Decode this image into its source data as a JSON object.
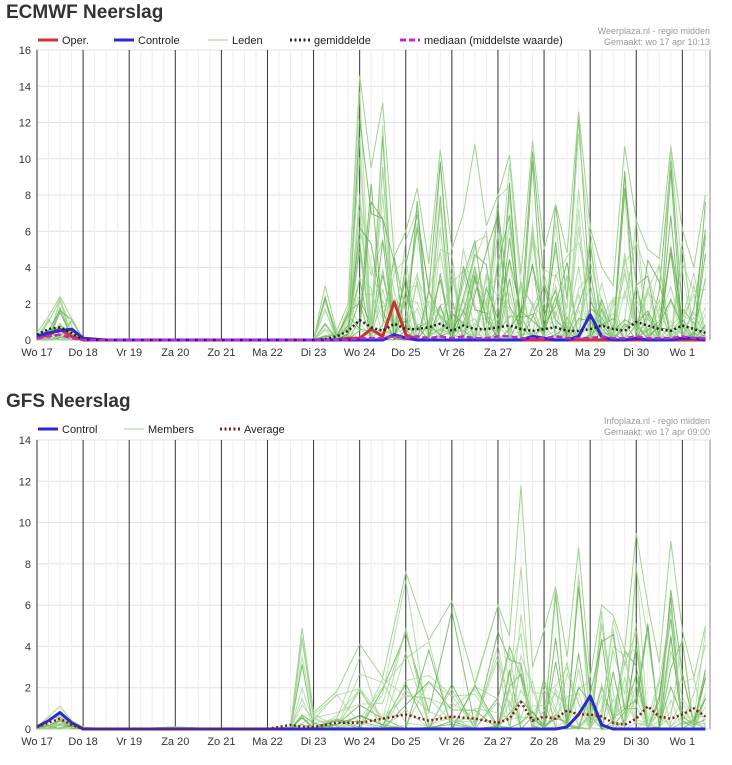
{
  "charts": [
    {
      "title": "ECMWF Neerslag",
      "source_line1": "Weerplaza.nl - regio midden",
      "source_line2": "Gemaakt: wo 17 apr 10:13",
      "legend": [
        {
          "label": "Oper.",
          "color": "#d03030",
          "style": "solid"
        },
        {
          "label": "Controle",
          "color": "#2a2ad0",
          "style": "solid"
        },
        {
          "label": "Leden",
          "color": "#9fd48f",
          "style": "thin"
        },
        {
          "label": "gemiddelde",
          "color": "#222222",
          "style": "dotted"
        },
        {
          "label": "mediaan (middelste waarde)",
          "color": "#d020d0",
          "style": "dashed"
        }
      ]
    },
    {
      "title": "GFS Neerslag",
      "source_line1": "Infoplaza.nl - regio midden",
      "source_line2": "Gemaakt: wo 17 apr 09:00",
      "legend": [
        {
          "label": "Control",
          "color": "#2a2ad0",
          "style": "solid"
        },
        {
          "label": "Members",
          "color": "#9fd48f",
          "style": "thin"
        },
        {
          "label": "Average",
          "color": "#8b1a1a",
          "style": "dotted"
        }
      ]
    }
  ],
  "chart_data": [
    {
      "type": "line",
      "title": "ECMWF Neerslag",
      "xlabel": "",
      "ylabel": "",
      "ylim": [
        0,
        16
      ],
      "yticks": [
        0,
        2,
        4,
        6,
        8,
        10,
        12,
        14,
        16
      ],
      "x_tick_labels": [
        "Wo 17",
        "Do 18",
        "Vr 19",
        "Za 20",
        "Zo 21",
        "Ma 22",
        "Di 23",
        "Wo 24",
        "Do 25",
        "Vr 26",
        "Za 27",
        "Zo 28",
        "Ma 29",
        "Di 30",
        "Wo 1"
      ],
      "grid": true,
      "legend_position": "top",
      "x": [
        0,
        0.25,
        0.5,
        0.75,
        1,
        1.5,
        2,
        3,
        4,
        5,
        6,
        6.25,
        6.5,
        6.75,
        7,
        7.25,
        7.5,
        7.75,
        8,
        8.25,
        8.5,
        8.75,
        9,
        9.25,
        9.5,
        9.75,
        10,
        10.25,
        10.5,
        10.75,
        11,
        11.25,
        11.5,
        11.75,
        12,
        12.25,
        12.5,
        12.75,
        13,
        13.25,
        13.5,
        13.75,
        14,
        14.25,
        14.5
      ],
      "series": [
        {
          "name": "Oper.",
          "values": [
            0.1,
            0.3,
            0.6,
            0.2,
            0,
            0,
            0,
            0,
            0,
            0,
            0,
            0,
            0,
            0.1,
            0.1,
            0.6,
            0.2,
            2.1,
            0.3,
            0,
            0,
            0,
            0,
            0,
            0,
            0,
            0,
            0,
            0,
            0,
            0,
            0,
            0,
            0,
            0,
            0,
            0,
            0,
            0,
            0,
            0,
            0,
            0,
            0,
            0
          ]
        },
        {
          "name": "Controle",
          "values": [
            0.2,
            0.4,
            0.5,
            0.6,
            0.1,
            0,
            0,
            0,
            0,
            0,
            0,
            0,
            0,
            0,
            0,
            0,
            0,
            0.3,
            0.1,
            0,
            0,
            0,
            0,
            0,
            0,
            0,
            0,
            0,
            0,
            0.2,
            0.1,
            0,
            0,
            0.2,
            1.4,
            0.2,
            0,
            0,
            0.1,
            0,
            0,
            0,
            0.1,
            0.1,
            0
          ]
        },
        {
          "name": "gemiddelde",
          "values": [
            0.3,
            0.6,
            0.7,
            0.4,
            0,
            0,
            0,
            0,
            0,
            0,
            0,
            0.05,
            0.2,
            0.5,
            1.1,
            0.7,
            0.5,
            0.9,
            0.6,
            0.6,
            0.7,
            0.9,
            0.5,
            0.8,
            0.6,
            0.6,
            0.7,
            0.8,
            0.6,
            0.5,
            0.6,
            0.7,
            0.5,
            0.5,
            0.6,
            0.8,
            0.6,
            0.5,
            1.0,
            0.8,
            0.6,
            0.5,
            0.8,
            0.6,
            0.4
          ]
        },
        {
          "name": "mediaan (middelste waarde)",
          "values": [
            0.1,
            0.2,
            0.3,
            0.1,
            0,
            0,
            0,
            0,
            0,
            0,
            0,
            0,
            0,
            0,
            0.1,
            0.1,
            0.1,
            0.2,
            0.1,
            0.2,
            0.1,
            0.2,
            0.1,
            0.2,
            0.1,
            0.1,
            0.2,
            0.2,
            0.1,
            0.1,
            0.1,
            0.2,
            0.1,
            0.1,
            0.1,
            0.2,
            0.1,
            0.1,
            0.2,
            0.1,
            0.1,
            0.1,
            0.2,
            0.1,
            0.1
          ]
        },
        {
          "name": "Leden",
          "values": [
            0.4,
            1.3,
            2.4,
            1.2,
            0.1,
            0,
            0,
            0,
            0,
            0,
            0,
            3.0,
            0.5,
            2.0,
            14.6,
            9.5,
            13.1,
            4.6,
            6.0,
            8.4,
            4.2,
            10.5,
            5.0,
            7.0,
            10.8,
            6.3,
            8.0,
            10.2,
            3.6,
            11.0,
            5.0,
            7.5,
            4.8,
            12.6,
            6.2,
            4.0,
            3.0,
            10.7,
            6.6,
            5.0,
            4.5,
            10.7,
            6.1,
            4.0,
            8.0
          ]
        }
      ]
    },
    {
      "type": "line",
      "title": "GFS Neerslag",
      "xlabel": "",
      "ylabel": "",
      "ylim": [
        0,
        14
      ],
      "yticks": [
        0,
        2,
        4,
        6,
        8,
        10,
        12,
        14
      ],
      "x_tick_labels": [
        "Wo 17",
        "Do 18",
        "Vr 19",
        "Za 20",
        "Zo 21",
        "Ma 22",
        "Di 23",
        "Wo 24",
        "Do 25",
        "Vr 26",
        "Za 27",
        "Zo 28",
        "Ma 29",
        "Di 30",
        "Wo 1"
      ],
      "grid": true,
      "legend_position": "top",
      "x": [
        0,
        0.25,
        0.5,
        0.75,
        1,
        1.5,
        2,
        3,
        4,
        5,
        5.5,
        5.75,
        6,
        6.5,
        7,
        7.5,
        8,
        8.5,
        9,
        9.5,
        10,
        10.25,
        10.5,
        10.75,
        11,
        11.25,
        11.5,
        11.75,
        12,
        12.25,
        12.5,
        12.75,
        13,
        13.25,
        13.5,
        13.75,
        14,
        14.25,
        14.5
      ],
      "series": [
        {
          "name": "Control",
          "values": [
            0.1,
            0.4,
            0.8,
            0.3,
            0,
            0,
            0,
            0,
            0,
            0,
            0,
            0,
            0,
            0,
            0,
            0,
            0,
            0,
            0,
            0,
            0,
            0,
            0,
            0,
            0,
            0,
            0.1,
            0.7,
            1.6,
            0.2,
            0,
            0,
            0,
            0,
            0,
            0,
            0,
            0,
            0
          ]
        },
        {
          "name": "Average",
          "values": [
            0.1,
            0.3,
            0.5,
            0.2,
            0,
            0,
            0,
            0,
            0,
            0,
            0.2,
            0.1,
            0.1,
            0.3,
            0.3,
            0.5,
            0.7,
            0.4,
            0.6,
            0.5,
            0.3,
            0.5,
            1.3,
            0.4,
            0.6,
            0.5,
            0.9,
            0.7,
            0.7,
            0.6,
            0.3,
            0.2,
            0.5,
            1.1,
            0.6,
            0.5,
            0.7,
            1.0,
            0.6
          ]
        },
        {
          "name": "Members",
          "values": [
            0.1,
            0.6,
            1.1,
            0.4,
            0.1,
            0,
            0,
            0.1,
            0,
            0,
            0.1,
            4.9,
            0.8,
            1.8,
            4.1,
            2.5,
            7.6,
            4.3,
            6.2,
            2.2,
            6.0,
            4.5,
            11.8,
            3.0,
            4.8,
            6.9,
            3.5,
            8.8,
            2.5,
            6.0,
            5.5,
            3.8,
            9.5,
            6.0,
            3.2,
            9.1,
            4.8,
            2.5,
            5.0
          ]
        }
      ]
    }
  ]
}
